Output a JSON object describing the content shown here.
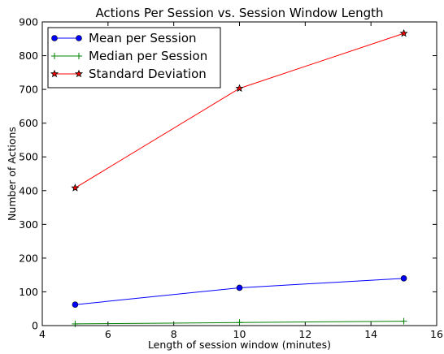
{
  "chart_data": {
    "type": "line",
    "title": "Actions Per Session vs. Session Window Length",
    "xlabel": "Length of session window (minutes)",
    "ylabel": "Number of Actions",
    "xlim": [
      4,
      16
    ],
    "ylim": [
      0,
      900
    ],
    "xticks": [
      "4",
      "6",
      "8",
      "10",
      "12",
      "14",
      "16"
    ],
    "yticks": [
      "0",
      "100",
      "200",
      "300",
      "400",
      "500",
      "600",
      "700",
      "800",
      "900"
    ],
    "grid": false,
    "legend_position": "top-left",
    "x": [
      5,
      10,
      15
    ],
    "series": [
      {
        "name": "Mean per Session",
        "values": [
          62,
          112,
          140
        ],
        "color": "#0000ff",
        "marker": "circle"
      },
      {
        "name": "Median per Session",
        "values": [
          5,
          9,
          13
        ],
        "color": "#008000",
        "marker": "plus"
      },
      {
        "name": "Standard Deviation",
        "values": [
          408,
          703,
          866
        ],
        "color": "#ff0000",
        "marker": "star"
      }
    ]
  }
}
